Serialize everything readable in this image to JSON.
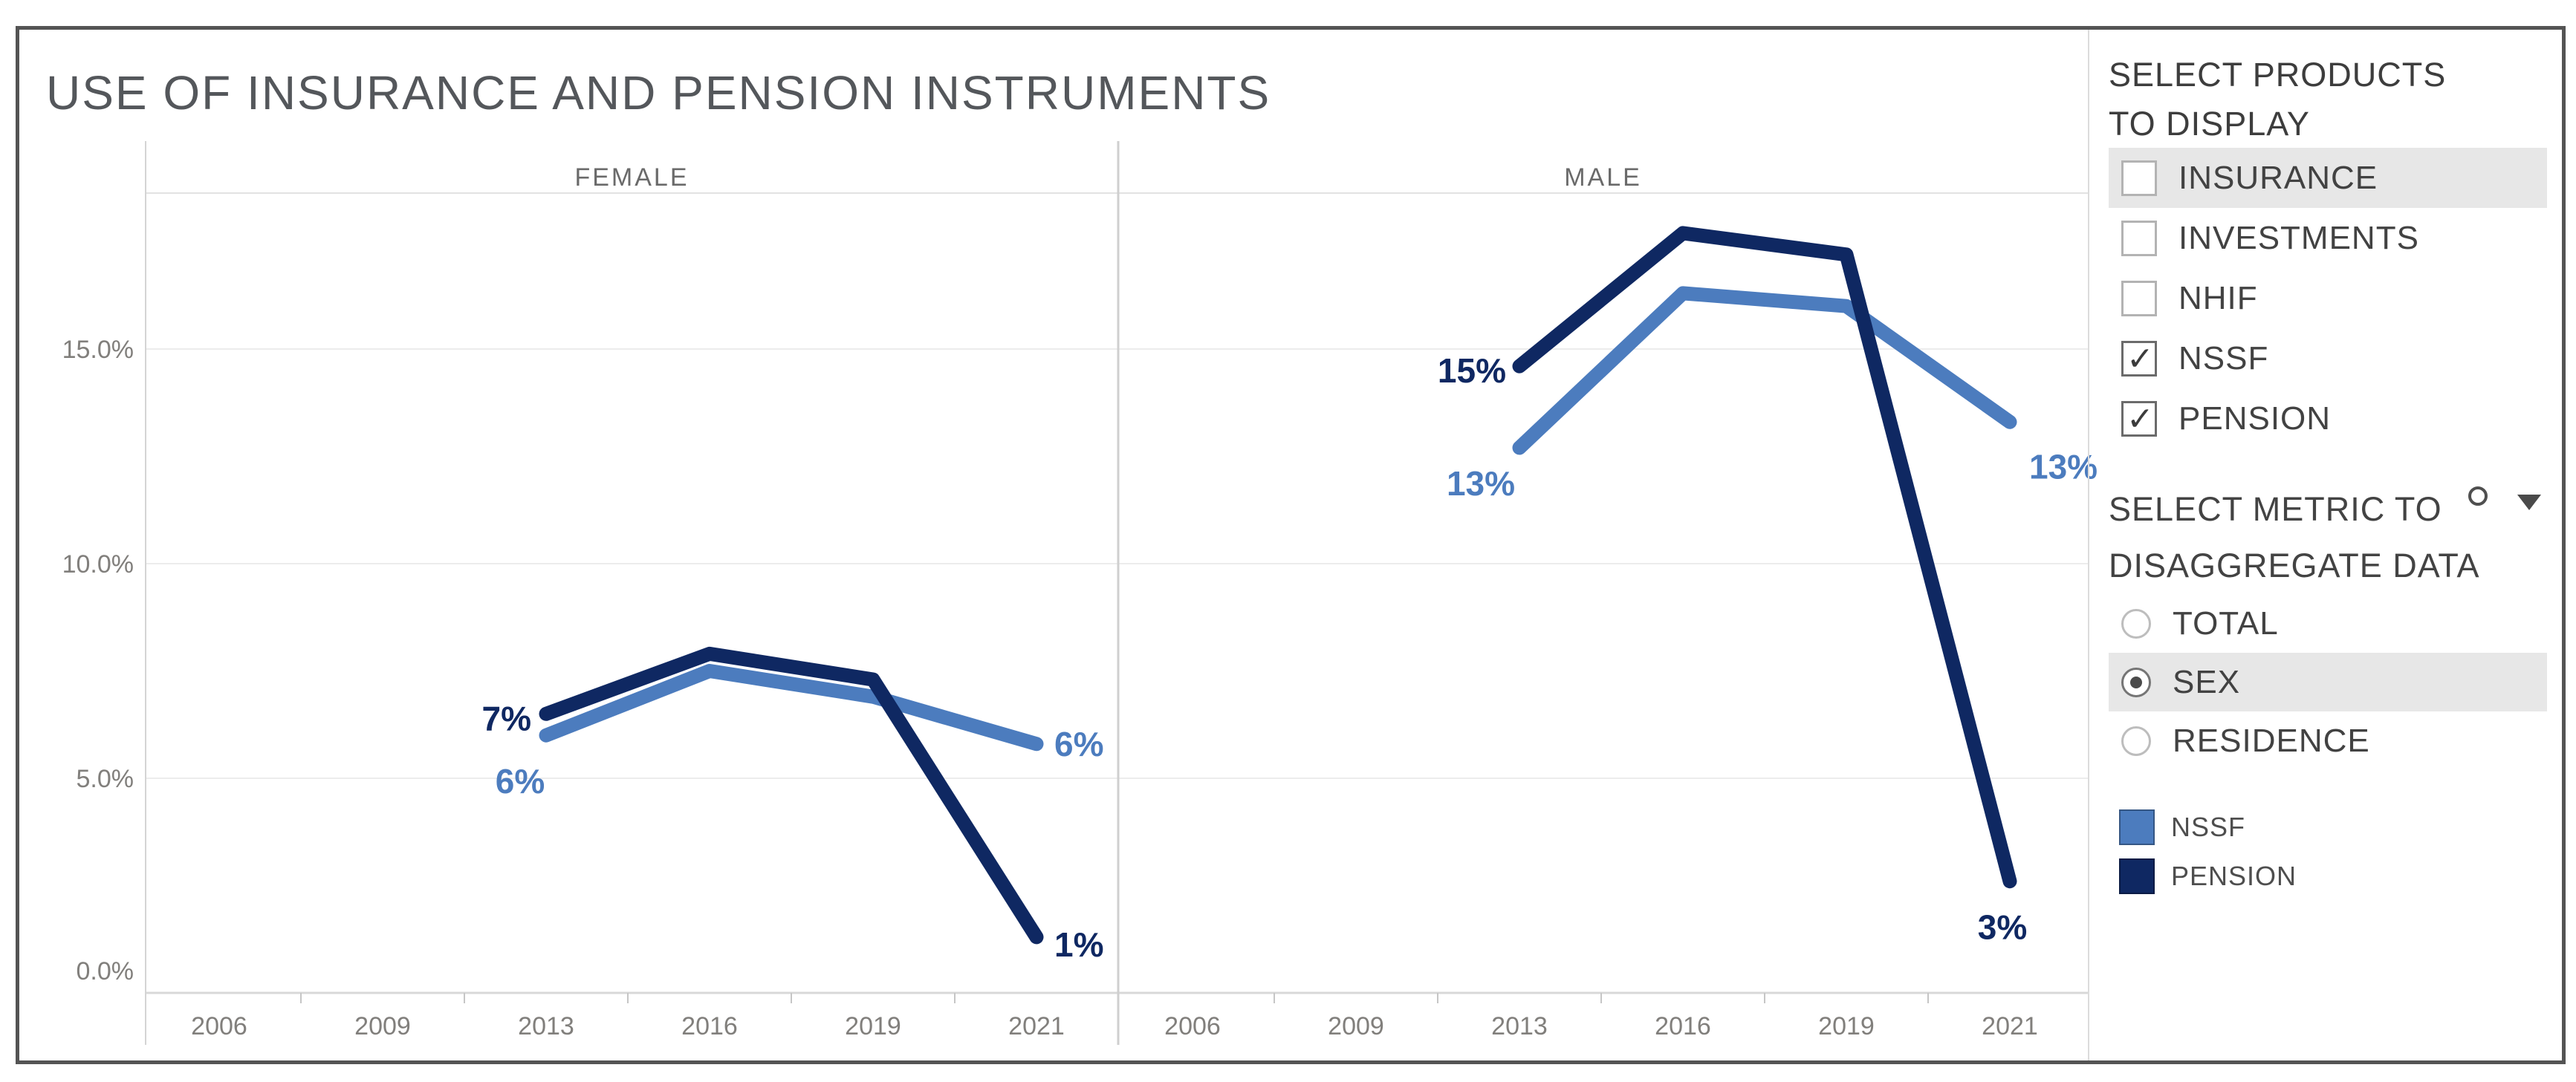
{
  "title": "USE OF INSURANCE AND PENSION INSTRUMENTS",
  "sidebar": {
    "products_filter": {
      "title_lines": [
        "SELECT PRODUCTS",
        "TO DISPLAY"
      ],
      "items": [
        {
          "label": "INSURANCE",
          "checked": false,
          "highlighted": true
        },
        {
          "label": "INVESTMENTS",
          "checked": false,
          "highlighted": false
        },
        {
          "label": "NHIF",
          "checked": false,
          "highlighted": false
        },
        {
          "label": "NSSF",
          "checked": true,
          "highlighted": false
        },
        {
          "label": "PENSION",
          "checked": true,
          "highlighted": false
        }
      ]
    },
    "metric_filter": {
      "title_lines": [
        "SELECT METRIC TO",
        "DISAGGREGATE DATA"
      ],
      "has_dropdown_caret": true,
      "items": [
        {
          "label": "TOTAL",
          "selected": false,
          "highlighted": false
        },
        {
          "label": "SEX",
          "selected": true,
          "highlighted": true
        },
        {
          "label": "RESIDENCE",
          "selected": false,
          "highlighted": false
        }
      ]
    },
    "legend": {
      "items": [
        {
          "label": "NSSF",
          "color": "#4c7cbe"
        },
        {
          "label": "PENSION",
          "color": "#0f2862"
        }
      ]
    }
  },
  "ui": {
    "row_highlight": "#e7e7e7",
    "border_color": "#545454"
  },
  "chart_data": {
    "type": "line",
    "title": "USE OF INSURANCE AND PENSION INSTRUMENTS",
    "faceted_by": "SEX",
    "facets": [
      "FEMALE",
      "MALE"
    ],
    "x": [
      "2006",
      "2009",
      "2013",
      "2016",
      "2019",
      "2021"
    ],
    "yticks": [
      {
        "label": "0.0%",
        "value": 0
      },
      {
        "label": "5.0%",
        "value": 5
      },
      {
        "label": "10.0%",
        "value": 10
      },
      {
        "label": "15.0%",
        "value": 15
      }
    ],
    "ylim": [
      0,
      18.6
    ],
    "grid": "horizontal",
    "legend_position": "right",
    "series": [
      {
        "facet": "FEMALE",
        "name": "NSSF",
        "color": "#4c7cbe",
        "points": [
          {
            "x": "2013",
            "y": 6.0,
            "label": "6%"
          },
          {
            "x": "2016",
            "y": 7.5
          },
          {
            "x": "2019",
            "y": 6.9
          },
          {
            "x": "2021",
            "y": 5.8,
            "label": "6%"
          }
        ]
      },
      {
        "facet": "FEMALE",
        "name": "PENSION",
        "color": "#0f2862",
        "points": [
          {
            "x": "2013",
            "y": 6.5,
            "label": "7%"
          },
          {
            "x": "2016",
            "y": 7.9
          },
          {
            "x": "2019",
            "y": 7.3
          },
          {
            "x": "2021",
            "y": 1.3,
            "label": "1%"
          }
        ]
      },
      {
        "facet": "MALE",
        "name": "NSSF",
        "color": "#4c7cbe",
        "points": [
          {
            "x": "2013",
            "y": 12.7,
            "label": "13%"
          },
          {
            "x": "2016",
            "y": 16.3
          },
          {
            "x": "2019",
            "y": 16.0
          },
          {
            "x": "2021",
            "y": 13.3,
            "label": "13%"
          }
        ]
      },
      {
        "facet": "MALE",
        "name": "PENSION",
        "color": "#0f2862",
        "points": [
          {
            "x": "2013",
            "y": 14.6,
            "label": "15%"
          },
          {
            "x": "2016",
            "y": 17.7
          },
          {
            "x": "2019",
            "y": 17.2
          },
          {
            "x": "2021",
            "y": 2.6,
            "label": "3%"
          }
        ]
      }
    ]
  }
}
